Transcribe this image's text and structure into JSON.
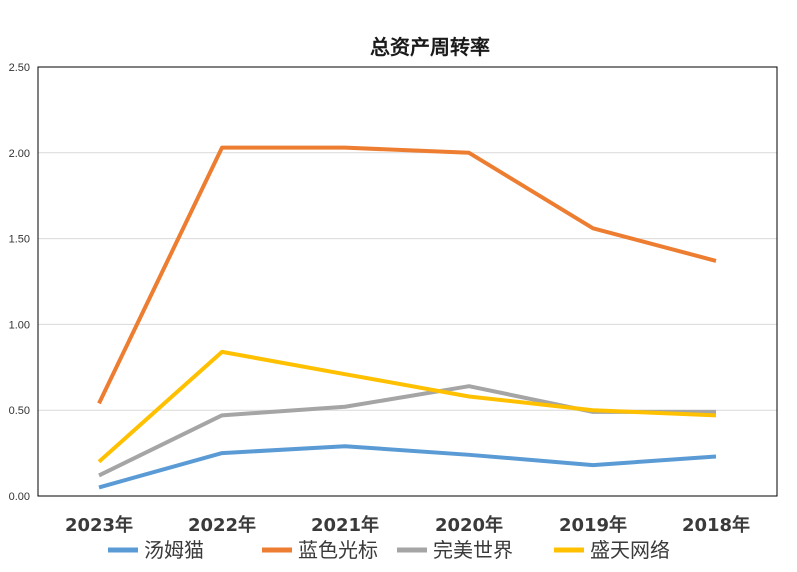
{
  "chart_data": {
    "type": "line",
    "title": "总资产周转率",
    "xlabel": "",
    "ylabel": "",
    "categories": [
      "2023年",
      "2022年",
      "2021年",
      "2020年",
      "2019年",
      "2018年"
    ],
    "ylim": [
      0,
      2.5
    ],
    "yticks": [
      "0.00",
      "0.50",
      "1.00",
      "1.50",
      "2.00",
      "2.50"
    ],
    "ytick_values": [
      0,
      0.5,
      1.0,
      1.5,
      2.0,
      2.5
    ],
    "grid": true,
    "legend_position": "bottom",
    "series": [
      {
        "name": "汤姆猫",
        "color": "#5b9bd5",
        "values": [
          0.05,
          0.25,
          0.29,
          0.24,
          0.18,
          0.23
        ]
      },
      {
        "name": "蓝色光标",
        "color": "#ed7d31",
        "values": [
          0.54,
          2.03,
          2.03,
          2.0,
          1.56,
          1.37
        ]
      },
      {
        "name": "完美世界",
        "color": "#a5a5a5",
        "values": [
          0.12,
          0.47,
          0.52,
          0.64,
          0.49,
          0.49
        ]
      },
      {
        "name": "盛天网络",
        "color": "#ffc000",
        "values": [
          0.2,
          0.84,
          0.71,
          0.58,
          0.5,
          0.47
        ]
      }
    ]
  }
}
